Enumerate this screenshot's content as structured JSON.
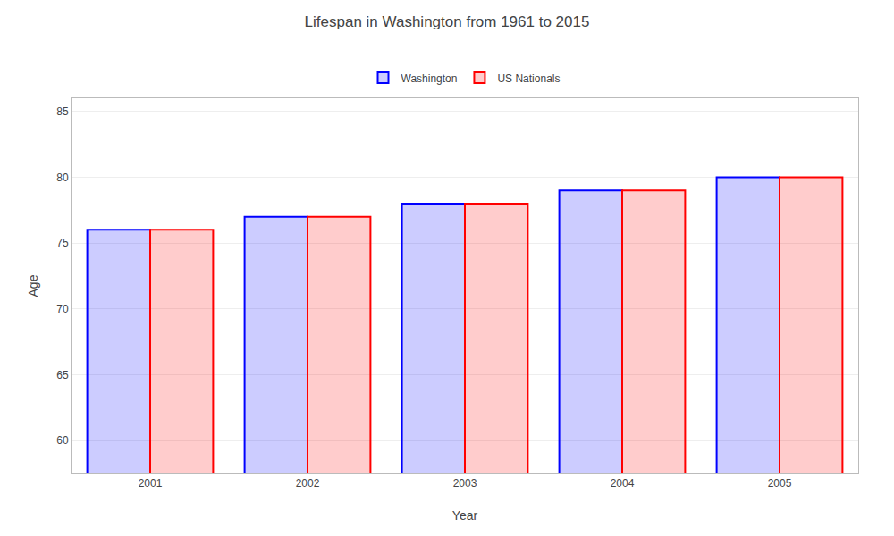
{
  "chart_data": {
    "type": "bar",
    "title": "Lifespan in Washington from 1961 to 2015",
    "xlabel": "Year",
    "ylabel": "Age",
    "categories": [
      "2001",
      "2002",
      "2003",
      "2004",
      "2005"
    ],
    "series": [
      {
        "name": "Washington",
        "color": "#0000ff",
        "values": [
          76,
          77,
          78,
          79,
          80
        ]
      },
      {
        "name": "US Nationals",
        "color": "#ff0000",
        "values": [
          76,
          77,
          78,
          79,
          80
        ]
      }
    ],
    "ylim": [
      57.5,
      86
    ],
    "yticks": [
      60,
      65,
      70,
      75,
      80,
      85
    ],
    "grid": true,
    "legend": "top"
  }
}
